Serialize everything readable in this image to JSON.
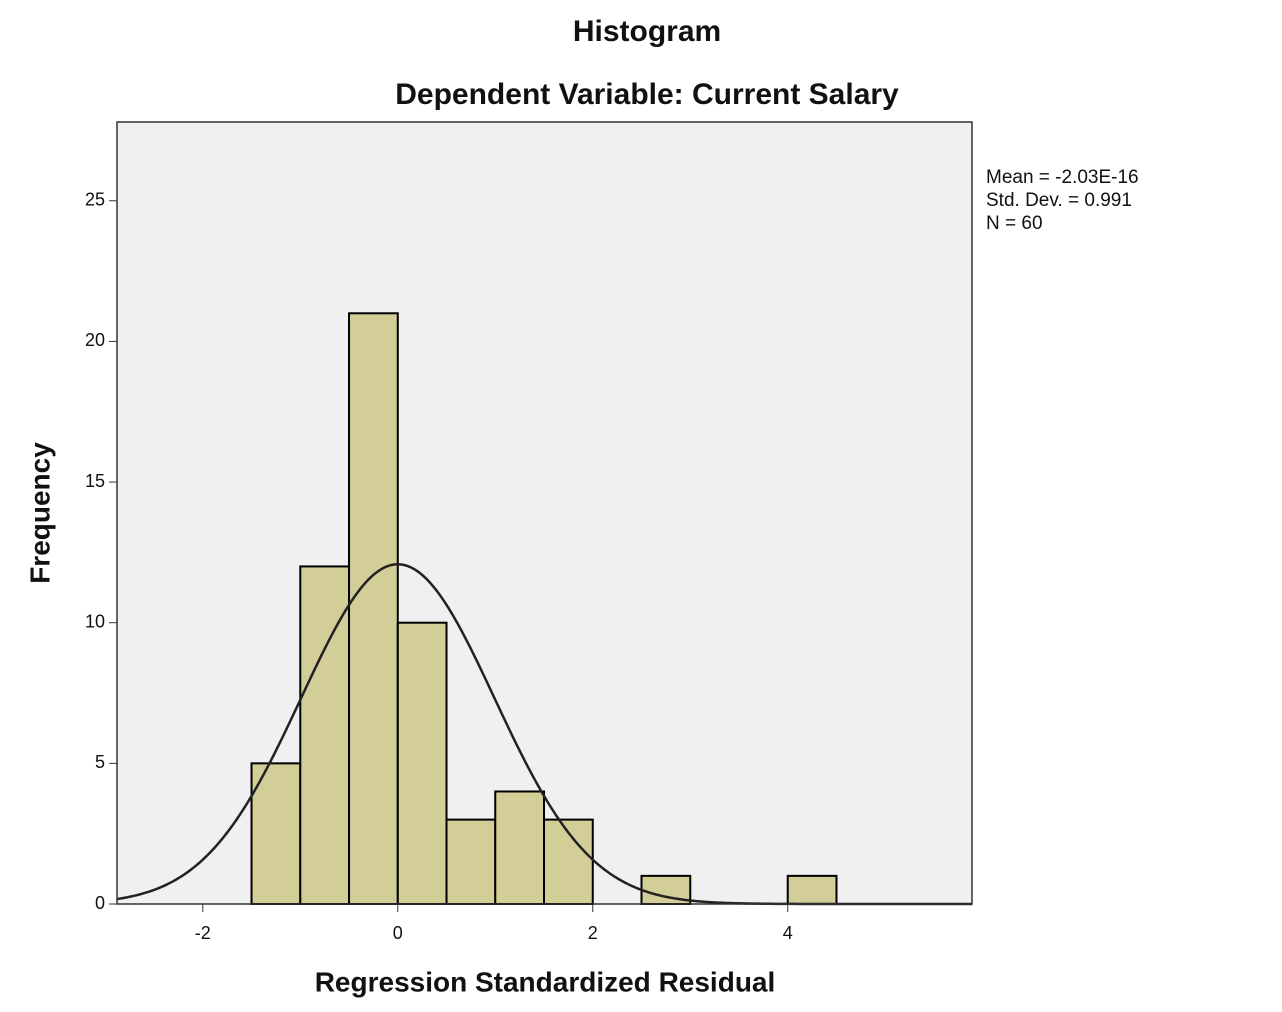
{
  "chart_data": {
    "type": "histogram",
    "title": "Histogram",
    "subtitle": "Dependent Variable: Current Salary",
    "x_label": "Regression Standardized Residual",
    "y_label": "Frequency",
    "bins": [
      -1.5,
      -1.0,
      -0.5,
      0,
      0.5,
      1.0,
      1.5,
      2.0,
      2.5,
      3.0,
      3.5,
      4.0,
      4.5
    ],
    "values": [
      5,
      12,
      21,
      10,
      3,
      4,
      3,
      0,
      1,
      0,
      0,
      1
    ],
    "color": "#d3ce97",
    "edge_color": "#000000",
    "background": "#f0f0f0",
    "curve_color": "#222222",
    "xlim": [
      -2.88,
      5.89
    ],
    "ylim": [
      0,
      27.8
    ],
    "xticks": [
      -2,
      0,
      2,
      4
    ],
    "yticks": [
      0,
      5,
      10,
      15,
      20,
      25
    ],
    "normal_curve": true,
    "stats": [
      {
        "value": -2.03e-16,
        "label": "Mean = -2.03E-16"
      },
      {
        "value": 0.991,
        "label": "Std. Dev. = 0.991"
      },
      {
        "value": 60,
        "label": "N = 60"
      }
    ]
  }
}
